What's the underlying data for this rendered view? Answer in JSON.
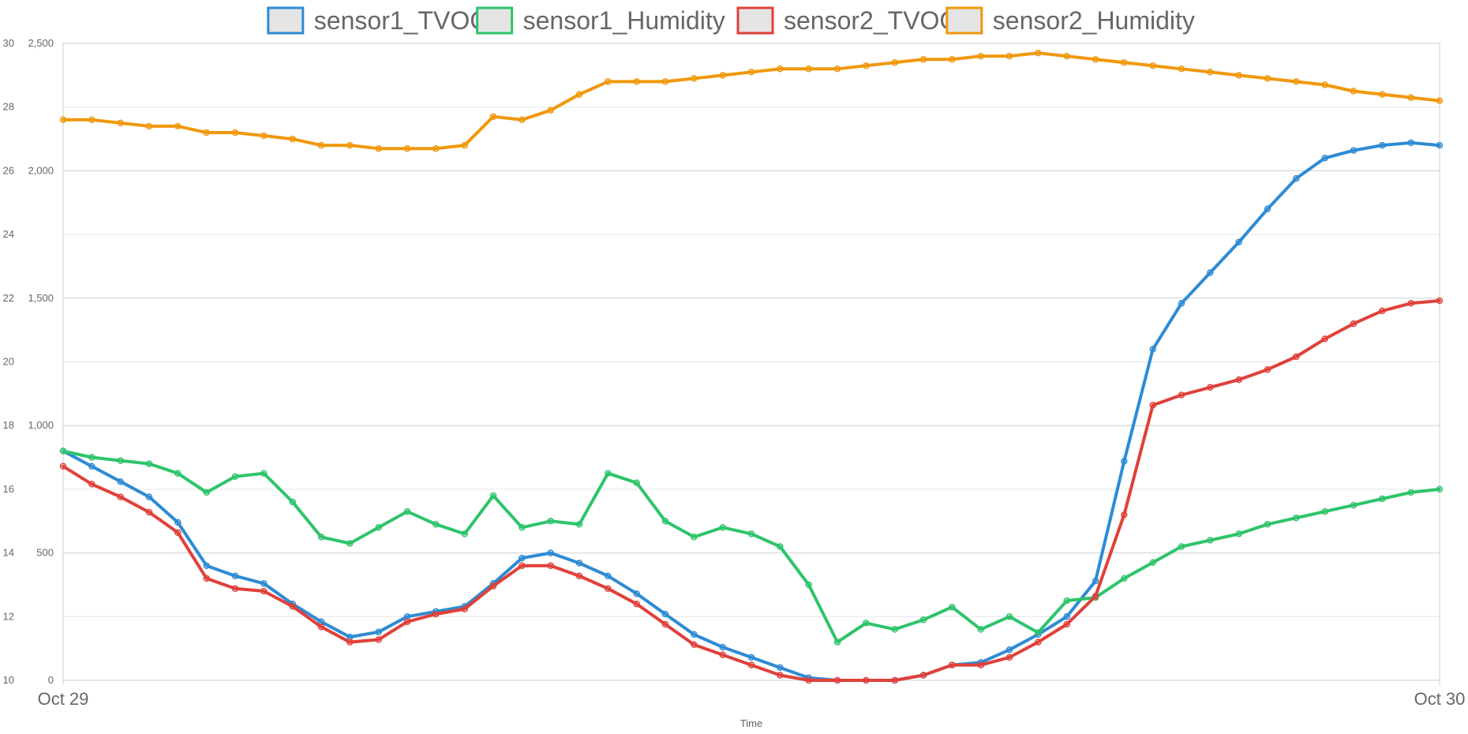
{
  "chart_data": {
    "type": "line",
    "legend_position": "top",
    "grid": true,
    "x": {
      "label": "Time",
      "ticks": [
        "Oct 29",
        "Oct 30"
      ],
      "range": [
        0,
        24
      ]
    },
    "y_left": {
      "range": [
        10,
        30
      ],
      "ticks": [
        "10",
        "12",
        "14",
        "16",
        "18",
        "20",
        "22",
        "24",
        "26",
        "28",
        "30"
      ]
    },
    "y_right": {
      "range": [
        0,
        2500
      ],
      "ticks": [
        "0",
        "500",
        "1,000",
        "1,500",
        "2,000",
        "2,500"
      ]
    },
    "series": [
      {
        "name": "sensor1_TVOC",
        "color": "#2e8bd4",
        "axis": "right",
        "x": [
          0,
          0.5,
          1,
          1.5,
          2,
          2.5,
          3,
          3.5,
          4,
          4.5,
          5,
          5.5,
          6,
          6.5,
          7,
          7.5,
          8,
          8.5,
          9,
          9.5,
          10,
          10.5,
          11,
          11.5,
          12,
          12.5,
          13,
          13.5,
          14,
          14.5,
          15,
          15.5,
          16,
          16.5,
          17,
          17.5,
          18,
          18.5,
          19,
          19.5,
          20,
          20.5,
          21,
          21.5,
          22,
          22.5,
          23,
          23.5,
          24
        ],
        "values": [
          900,
          840,
          780,
          720,
          620,
          450,
          410,
          380,
          300,
          230,
          170,
          190,
          250,
          270,
          290,
          380,
          480,
          500,
          460,
          410,
          340,
          260,
          180,
          130,
          90,
          50,
          10,
          0,
          0,
          0,
          20,
          60,
          70,
          120,
          180,
          250,
          390,
          860,
          1300,
          1480,
          1600,
          1720,
          1850,
          1970,
          2050,
          2080,
          2100,
          2110,
          2100
        ]
      },
      {
        "name": "sensor1_Humidity",
        "color": "#2ec46b",
        "axis": "left",
        "x": [
          0,
          0.5,
          1,
          1.5,
          2,
          2.5,
          3,
          3.5,
          4,
          4.5,
          5,
          5.5,
          6,
          6.5,
          7,
          7.5,
          8,
          8.5,
          9,
          9.5,
          10,
          10.5,
          11,
          11.5,
          12,
          12.5,
          13,
          13.5,
          14,
          14.5,
          15,
          15.5,
          16,
          16.5,
          17,
          17.5,
          18,
          18.5,
          19,
          19.5,
          20,
          20.5,
          21,
          21.5,
          22,
          22.5,
          23,
          23.5,
          24
        ],
        "values": [
          17.2,
          17.0,
          16.9,
          16.8,
          16.5,
          15.9,
          16.4,
          16.5,
          15.6,
          14.5,
          14.3,
          14.8,
          15.3,
          14.9,
          14.6,
          15.8,
          14.8,
          15.0,
          14.9,
          16.5,
          16.2,
          15.0,
          14.5,
          14.8,
          14.6,
          14.2,
          13.0,
          11.2,
          11.8,
          11.6,
          11.9,
          12.3,
          11.6,
          12.0,
          11.5,
          12.5,
          12.6,
          13.2,
          13.7,
          14.2,
          14.4,
          14.6,
          14.9,
          15.1,
          15.3,
          15.5,
          15.7,
          15.9,
          16.0
        ]
      },
      {
        "name": "sensor2_TVOC",
        "color": "#e0403a",
        "axis": "right",
        "x": [
          0,
          0.5,
          1,
          1.5,
          2,
          2.5,
          3,
          3.5,
          4,
          4.5,
          5,
          5.5,
          6,
          6.5,
          7,
          7.5,
          8,
          8.5,
          9,
          9.5,
          10,
          10.5,
          11,
          11.5,
          12,
          12.5,
          13,
          13.5,
          14,
          14.5,
          15,
          15.5,
          16,
          16.5,
          17,
          17.5,
          18,
          18.5,
          19,
          19.5,
          20,
          20.5,
          21,
          21.5,
          22,
          22.5,
          23,
          23.5,
          24
        ],
        "values": [
          840,
          770,
          720,
          660,
          580,
          400,
          360,
          350,
          290,
          210,
          150,
          160,
          230,
          260,
          280,
          370,
          450,
          450,
          410,
          360,
          300,
          220,
          140,
          100,
          60,
          20,
          0,
          0,
          0,
          0,
          20,
          60,
          60,
          90,
          150,
          220,
          330,
          650,
          1080,
          1120,
          1150,
          1180,
          1220,
          1270,
          1340,
          1400,
          1450,
          1480,
          1490
        ]
      },
      {
        "name": "sensor2_Humidity",
        "color": "#f0980c",
        "axis": "left",
        "x": [
          0,
          0.5,
          1,
          1.5,
          2,
          2.5,
          3,
          3.5,
          4,
          4.5,
          5,
          5.5,
          6,
          6.5,
          7,
          7.5,
          8,
          8.5,
          9,
          9.5,
          10,
          10.5,
          11,
          11.5,
          12,
          12.5,
          13,
          13.5,
          14,
          14.5,
          15,
          15.5,
          16,
          16.5,
          17,
          17.5,
          18,
          18.5,
          19,
          19.5,
          20,
          20.5,
          21,
          21.5,
          22,
          22.5,
          23,
          23.5,
          24
        ],
        "values": [
          27.6,
          27.6,
          27.5,
          27.4,
          27.4,
          27.2,
          27.2,
          27.1,
          27.0,
          26.8,
          26.8,
          26.7,
          26.7,
          26.7,
          26.8,
          27.7,
          27.6,
          27.9,
          28.4,
          28.8,
          28.8,
          28.8,
          28.9,
          29.0,
          29.1,
          29.2,
          29.2,
          29.2,
          29.3,
          29.4,
          29.5,
          29.5,
          29.6,
          29.6,
          29.7,
          29.6,
          29.5,
          29.4,
          29.3,
          29.2,
          29.1,
          29.0,
          28.9,
          28.8,
          28.7,
          28.5,
          28.4,
          28.3,
          28.2
        ]
      }
    ]
  }
}
